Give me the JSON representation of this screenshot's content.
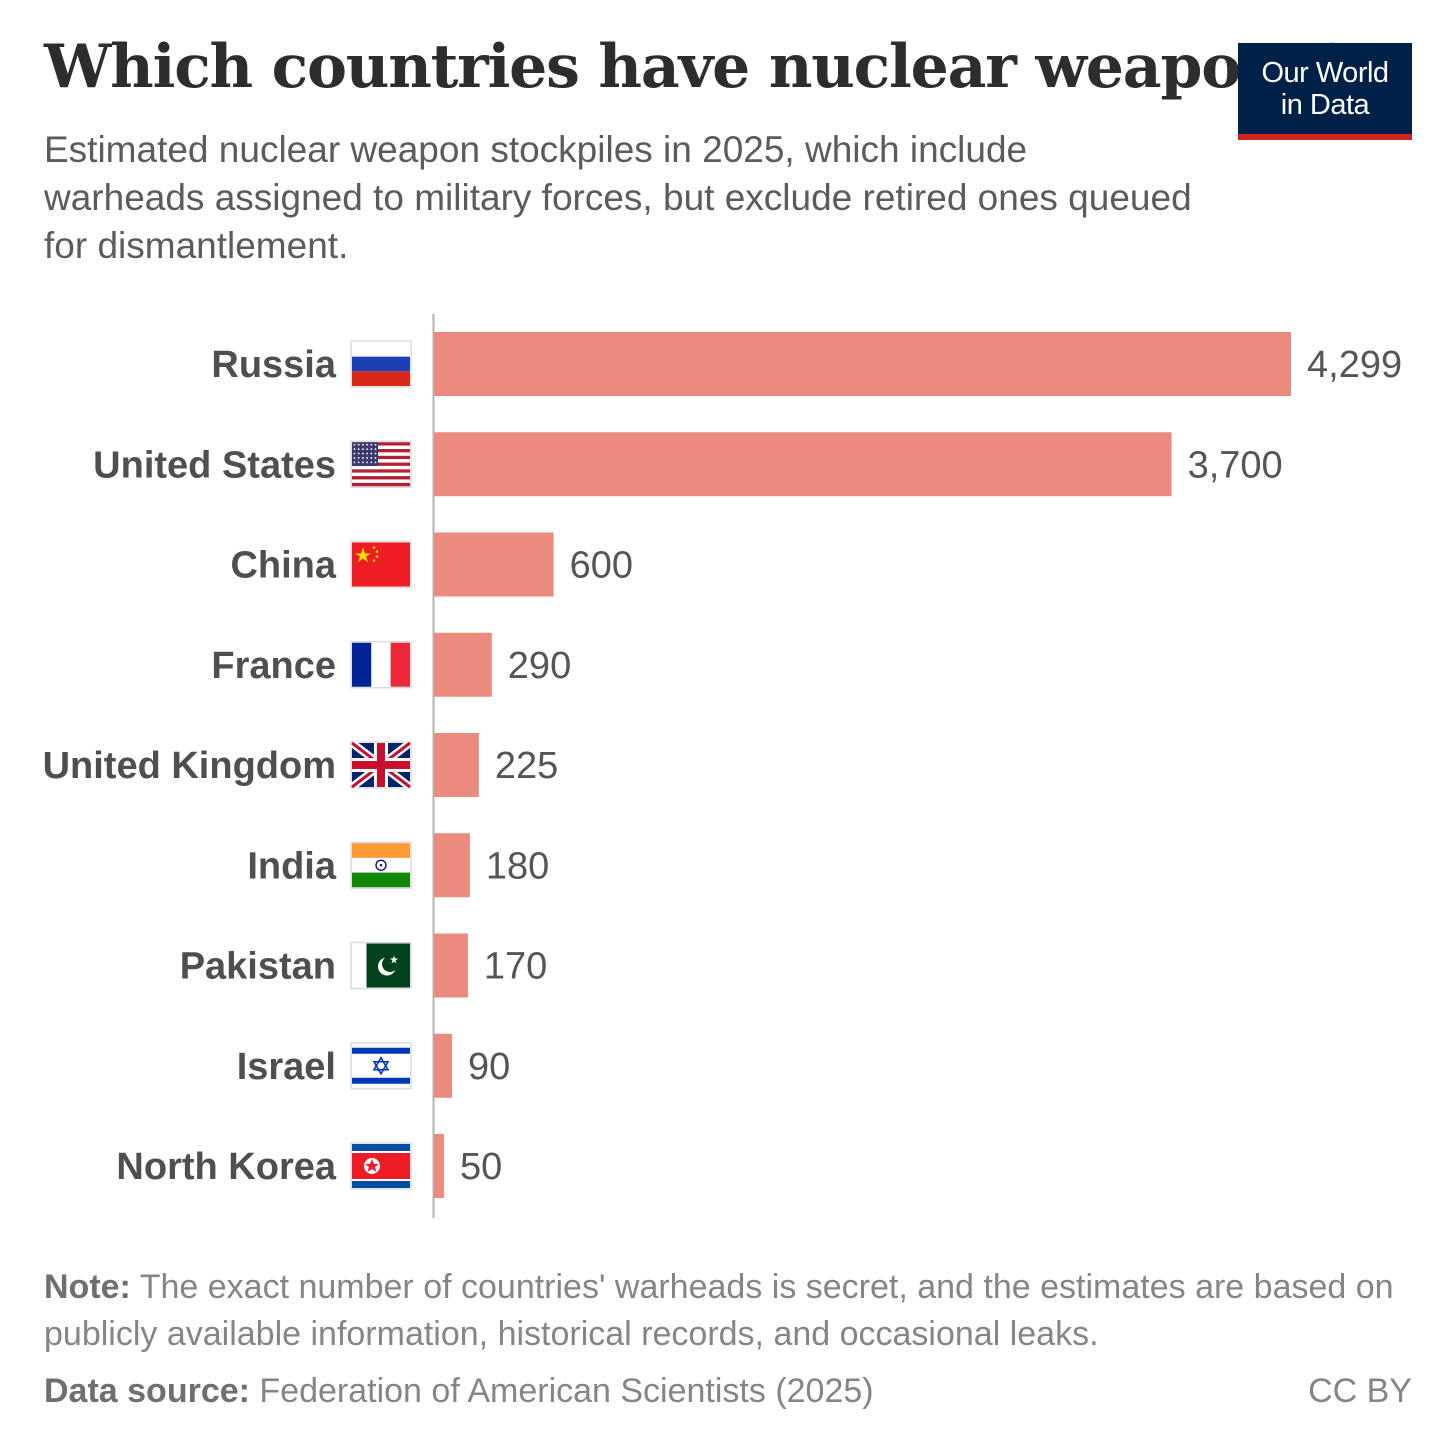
{
  "header": {
    "title": "Which countries have nuclear weapons?",
    "subtitle": "Estimated nuclear weapon stockpiles in 2025, which include warheads assigned to military forces, but exclude retired ones queued for dismantlement.",
    "logo_line1": "Our World",
    "logo_line2": "in Data"
  },
  "chart_data": {
    "type": "bar",
    "orientation": "horizontal",
    "title": "Which countries have nuclear weapons?",
    "categories": [
      "Russia",
      "United States",
      "China",
      "France",
      "United Kingdom",
      "India",
      "Pakistan",
      "Israel",
      "North Korea"
    ],
    "values": [
      4299,
      3700,
      600,
      290,
      225,
      180,
      170,
      90,
      50
    ],
    "value_labels": [
      "4,299",
      "3,700",
      "600",
      "290",
      "225",
      "180",
      "170",
      "90",
      "50"
    ],
    "flags": [
      "russia-flag",
      "usa-flag",
      "china-flag",
      "france-flag",
      "uk-flag",
      "india-flag",
      "pakistan-flag",
      "israel-flag",
      "north-korea-flag"
    ],
    "xlim": [
      0,
      4299
    ],
    "bar_color": "#eb8b7d",
    "xlabel": "",
    "ylabel": "",
    "grid": false,
    "legend": "none"
  },
  "footer": {
    "note_label": "Note:",
    "note_text": " The exact number of countries' warheads is secret, and the estimates are based on publicly available information, historical records, and occasional leaks.",
    "source_label": "Data source:",
    "source_text": " Federation of American Scientists (2025)",
    "license": "CC BY"
  },
  "colors": {
    "bar": "#eb8b7d",
    "logo_bg": "#002147",
    "logo_accent": "#ce261e",
    "title": "#2d2d2d"
  }
}
